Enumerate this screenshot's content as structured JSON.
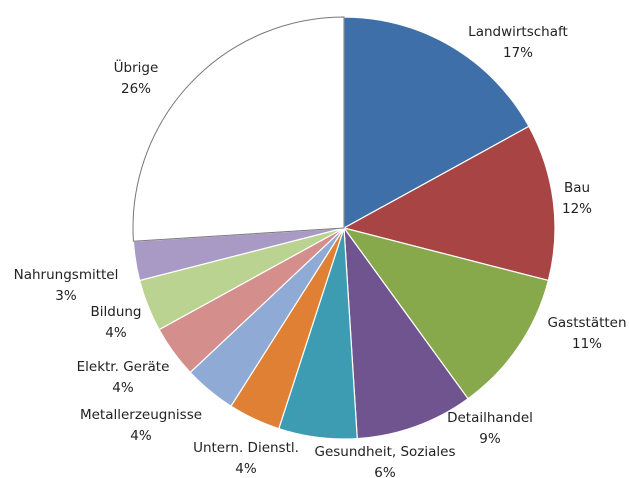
{
  "chart_data": {
    "type": "pie",
    "categories": [
      "Landwirtschaft",
      "Bau",
      "Gaststätten",
      "Detailhandel",
      "Gesundheit, Soziales",
      "Untern. Dienstl.",
      "Metallerzeugnisse",
      "Elektr. Geräte",
      "Bildung",
      "Nahrungsmittel",
      "Übrige"
    ],
    "values": [
      17,
      12,
      11,
      9,
      6,
      4,
      4,
      4,
      4,
      3,
      26
    ],
    "value_labels": [
      "17%",
      "12%",
      "11%",
      "9%",
      "6%",
      "4%",
      "4%",
      "4%",
      "4%",
      "3%",
      "26%"
    ],
    "colors": [
      "#3f6fa8",
      "#a84444",
      "#87a84b",
      "#6f5490",
      "#3d9cb1",
      "#e08035",
      "#8faad5",
      "#d48e8c",
      "#bad391",
      "#a999c5",
      "#ffffff"
    ]
  }
}
